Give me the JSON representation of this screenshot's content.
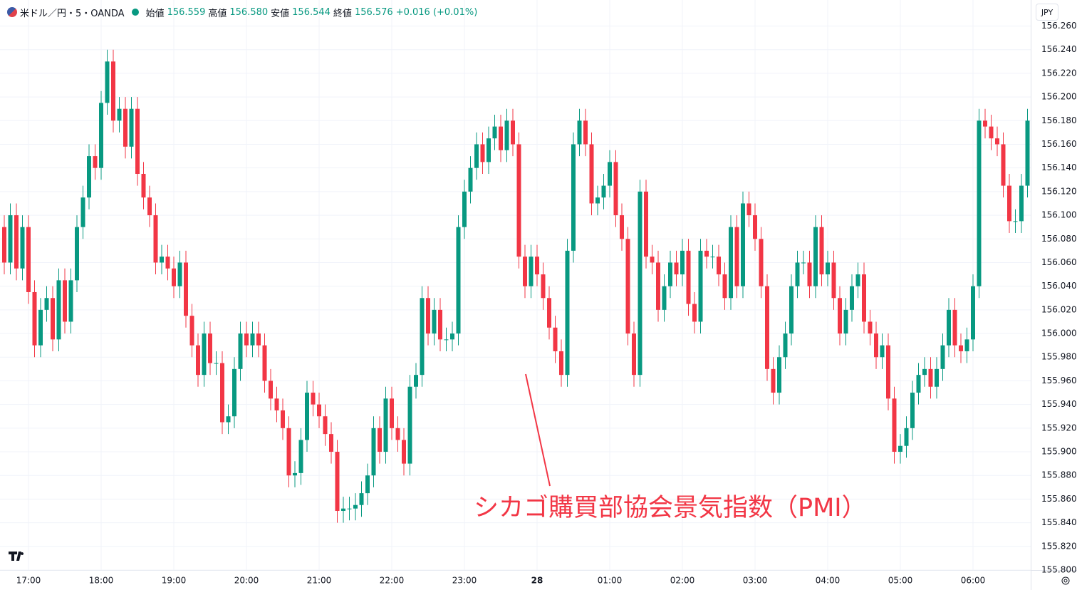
{
  "header": {
    "symbol": "米ドル／円・5・OANDA",
    "items": [
      {
        "label": "始値",
        "value": "156.559"
      },
      {
        "label": "高値",
        "value": "156.580"
      },
      {
        "label": "安値",
        "value": "156.544"
      },
      {
        "label": "終値",
        "value": "156.576"
      }
    ],
    "change": "+0.016 (+0.01%)"
  },
  "currency_button": "JPY",
  "chart_data": {
    "type": "candlestick",
    "up_color": "#089981",
    "down_color": "#f23645",
    "annotation": "シカゴ購買部協会景気指数（PMI）",
    "ylim": [
      155.8,
      156.282
    ],
    "yticks": [
      {
        "value": 155.8,
        "label": "155.800"
      },
      {
        "value": 155.82,
        "label": "155.820"
      },
      {
        "value": 155.84,
        "label": "155.840"
      },
      {
        "value": 155.86,
        "label": "155.860"
      },
      {
        "value": 155.88,
        "label": "155.880"
      },
      {
        "value": 155.9,
        "label": "155.900"
      },
      {
        "value": 155.92,
        "label": "155.920"
      },
      {
        "value": 155.94,
        "label": "155.940"
      },
      {
        "value": 155.96,
        "label": "155.960"
      },
      {
        "value": 155.98,
        "label": "155.980"
      },
      {
        "value": 156.0,
        "label": "156.000"
      },
      {
        "value": 156.02,
        "label": "156.020"
      },
      {
        "value": 156.04,
        "label": "156.040"
      },
      {
        "value": 156.06,
        "label": "156.060"
      },
      {
        "value": 156.08,
        "label": "156.080"
      },
      {
        "value": 156.1,
        "label": "156.100"
      },
      {
        "value": 156.12,
        "label": "156.120"
      },
      {
        "value": 156.14,
        "label": "156.140"
      },
      {
        "value": 156.16,
        "label": "156.160"
      },
      {
        "value": 156.18,
        "label": "156.180"
      },
      {
        "value": 156.2,
        "label": "156.200"
      },
      {
        "value": 156.22,
        "label": "156.220"
      },
      {
        "value": 156.24,
        "label": "156.240"
      },
      {
        "value": 156.26,
        "label": "156.260"
      }
    ],
    "xticks": [
      {
        "value": 4,
        "label": "17:00"
      },
      {
        "value": 16,
        "label": "18:00"
      },
      {
        "value": 28,
        "label": "19:00"
      },
      {
        "value": 40,
        "label": "20:00"
      },
      {
        "value": 52,
        "label": "21:00"
      },
      {
        "value": 64,
        "label": "22:00"
      },
      {
        "value": 76,
        "label": "23:00"
      },
      {
        "value": 88,
        "label": "28"
      },
      {
        "value": 100,
        "label": "01:00"
      },
      {
        "value": 112,
        "label": "02:00"
      },
      {
        "value": 124,
        "label": "03:00"
      },
      {
        "value": 136,
        "label": "04:00"
      },
      {
        "value": 148,
        "label": "05:00"
      },
      {
        "value": 160,
        "label": "06:00"
      }
    ],
    "open": [
      156.09,
      156.06,
      156.1,
      156.055,
      156.09,
      156.035,
      155.99,
      156.02,
      156.03,
      155.995,
      156.045,
      156.01,
      156.045,
      156.09,
      156.115,
      156.15,
      156.14,
      156.195,
      156.23,
      156.18,
      156.19,
      156.158,
      156.19,
      156.135,
      156.115,
      156.1,
      156.06,
      156.065,
      156.055,
      156.04,
      156.06,
      156.015,
      155.99,
      155.965,
      156.0,
      155.975,
      155.975,
      155.925,
      155.93,
      155.97,
      156.0,
      155.99,
      156.0,
      155.99,
      155.96,
      155.945,
      155.935,
      155.92,
      155.88,
      155.882,
      155.91,
      155.95,
      155.94,
      155.93,
      155.915,
      155.9,
      155.85,
      155.852,
      155.852,
      155.855,
      155.865,
      155.88,
      155.92,
      155.9,
      155.945,
      155.92,
      155.91,
      155.89,
      155.955,
      155.965,
      156.03,
      156.0,
      156.02,
      155.995,
      155.995,
      156.0,
      156.09,
      156.12,
      156.14,
      156.16,
      156.145,
      156.165,
      156.175,
      156.155,
      156.18,
      156.16,
      156.065,
      156.04,
      156.065,
      156.05,
      156.03,
      156.005,
      155.985,
      155.965,
      156.07,
      156.16,
      156.18,
      156.16,
      156.11,
      156.115,
      156.125,
      156.145,
      156.1,
      156.08,
      156.0,
      155.965,
      156.12,
      156.065,
      156.06,
      156.02,
      156.04,
      156.06,
      156.05,
      156.07,
      156.025,
      156.01,
      156.07,
      156.065,
      156.065,
      156.05,
      156.03,
      156.09,
      156.04,
      156.11,
      156.1,
      156.08,
      156.04,
      155.97,
      155.95,
      155.98,
      156.0,
      156.04,
      156.06,
      156.06,
      156.04,
      156.09,
      156.05,
      156.06,
      156.03,
      156.0,
      156.02,
      156.04,
      156.05,
      156.01,
      156.0,
      155.98,
      155.99,
      155.945,
      155.9,
      155.905,
      155.92,
      155.95,
      155.965,
      155.97,
      155.955,
      155.97,
      155.99,
      156.02,
      155.99,
      155.985,
      155.995,
      156.04,
      156.18,
      156.175,
      156.165,
      156.16,
      156.125,
      156.095,
      156.095,
      156.125
    ],
    "high": [
      156.1,
      156.11,
      156.11,
      156.1,
      156.1,
      156.045,
      156.03,
      156.04,
      156.04,
      156.055,
      156.055,
      156.055,
      156.1,
      156.125,
      156.16,
      156.16,
      156.205,
      156.24,
      156.24,
      156.2,
      156.2,
      156.2,
      156.2,
      156.145,
      156.125,
      156.11,
      156.075,
      156.075,
      156.065,
      156.07,
      156.07,
      156.025,
      156.0,
      156.01,
      156.01,
      155.985,
      155.985,
      155.94,
      155.98,
      156.01,
      156.01,
      156.01,
      156.01,
      156.0,
      155.97,
      155.955,
      155.945,
      155.93,
      155.892,
      155.92,
      155.96,
      155.96,
      155.95,
      155.94,
      155.925,
      155.91,
      155.862,
      155.862,
      155.865,
      155.875,
      155.89,
      155.93,
      155.93,
      155.955,
      155.955,
      155.93,
      155.92,
      155.965,
      155.975,
      156.04,
      156.04,
      156.03,
      156.03,
      156.005,
      156.01,
      156.1,
      156.13,
      156.15,
      156.17,
      156.17,
      156.175,
      156.185,
      156.185,
      156.19,
      156.19,
      156.17,
      156.075,
      156.075,
      156.075,
      156.06,
      156.04,
      156.015,
      155.995,
      156.08,
      156.17,
      156.19,
      156.19,
      156.17,
      156.125,
      156.135,
      156.155,
      156.155,
      156.11,
      156.09,
      156.01,
      156.13,
      156.13,
      156.075,
      156.07,
      156.05,
      156.07,
      156.07,
      156.08,
      156.08,
      156.035,
      156.08,
      156.08,
      156.075,
      156.075,
      156.06,
      156.1,
      156.1,
      156.12,
      156.12,
      156.11,
      156.09,
      156.05,
      155.98,
      155.99,
      156.01,
      156.05,
      156.07,
      156.07,
      156.07,
      156.1,
      156.1,
      156.07,
      156.07,
      156.04,
      156.03,
      156.05,
      156.06,
      156.06,
      156.02,
      156.01,
      156.0,
      156.0,
      155.955,
      155.915,
      155.93,
      155.96,
      155.975,
      155.98,
      155.98,
      155.98,
      156.0,
      156.03,
      156.03,
      156.0,
      156.005,
      156.05,
      156.19,
      156.19,
      156.185,
      156.175,
      156.17,
      156.135,
      156.105,
      156.135,
      156.19
    ],
    "low": [
      156.05,
      156.05,
      156.045,
      156.045,
      156.025,
      155.98,
      155.98,
      156.01,
      155.985,
      155.985,
      156.0,
      156.0,
      156.035,
      156.08,
      156.105,
      156.13,
      156.13,
      156.185,
      156.17,
      156.17,
      156.148,
      156.148,
      156.125,
      156.105,
      156.09,
      156.05,
      156.05,
      156.045,
      156.03,
      156.03,
      156.005,
      155.98,
      155.955,
      155.955,
      155.965,
      155.965,
      155.915,
      155.915,
      155.92,
      155.96,
      155.98,
      155.98,
      155.98,
      155.95,
      155.935,
      155.925,
      155.91,
      155.87,
      155.87,
      155.872,
      155.9,
      155.93,
      155.92,
      155.905,
      155.89,
      155.84,
      155.84,
      155.842,
      155.842,
      155.845,
      155.855,
      155.87,
      155.89,
      155.89,
      155.91,
      155.9,
      155.88,
      155.88,
      155.945,
      155.955,
      155.99,
      155.99,
      155.985,
      155.985,
      155.985,
      155.99,
      156.08,
      156.11,
      156.13,
      156.135,
      156.135,
      156.155,
      156.145,
      156.145,
      156.15,
      156.055,
      156.03,
      156.03,
      156.04,
      156.02,
      155.995,
      155.975,
      155.955,
      155.955,
      156.06,
      156.15,
      156.15,
      156.1,
      156.1,
      156.105,
      156.115,
      156.09,
      156.07,
      155.99,
      155.955,
      155.955,
      156.055,
      156.05,
      156.01,
      156.01,
      156.03,
      156.04,
      156.04,
      156.015,
      156.0,
      156.0,
      156.055,
      156.055,
      156.04,
      156.02,
      156.02,
      156.03,
      156.03,
      156.09,
      156.07,
      156.03,
      155.96,
      155.94,
      155.94,
      155.97,
      155.99,
      156.03,
      156.05,
      156.03,
      156.03,
      156.04,
      156.04,
      156.02,
      155.99,
      155.99,
      156.01,
      156.03,
      156.0,
      155.99,
      155.97,
      155.97,
      155.935,
      155.89,
      155.89,
      155.895,
      155.91,
      155.94,
      155.955,
      155.945,
      155.945,
      155.96,
      155.98,
      155.98,
      155.975,
      155.975,
      155.985,
      156.03,
      156.165,
      156.155,
      156.15,
      156.115,
      156.085,
      156.085,
      156.085,
      156.115
    ],
    "close": [
      156.06,
      156.1,
      156.055,
      156.09,
      156.035,
      155.99,
      156.02,
      156.03,
      155.995,
      156.045,
      156.01,
      156.045,
      156.09,
      156.115,
      156.15,
      156.14,
      156.195,
      156.23,
      156.18,
      156.19,
      156.158,
      156.19,
      156.135,
      156.115,
      156.1,
      156.06,
      156.065,
      156.055,
      156.04,
      156.06,
      156.015,
      155.99,
      155.965,
      156.0,
      155.975,
      155.975,
      155.925,
      155.93,
      155.97,
      156.0,
      155.99,
      156.0,
      155.99,
      155.96,
      155.945,
      155.935,
      155.92,
      155.88,
      155.882,
      155.91,
      155.95,
      155.94,
      155.93,
      155.915,
      155.9,
      155.85,
      155.852,
      155.852,
      155.855,
      155.865,
      155.88,
      155.92,
      155.9,
      155.945,
      155.92,
      155.91,
      155.89,
      155.955,
      155.965,
      156.03,
      156.0,
      156.02,
      155.995,
      155.995,
      156.0,
      156.09,
      156.12,
      156.14,
      156.16,
      156.145,
      156.165,
      156.175,
      156.155,
      156.18,
      156.16,
      156.065,
      156.04,
      156.065,
      156.05,
      156.03,
      156.005,
      155.985,
      155.965,
      156.07,
      156.16,
      156.18,
      156.16,
      156.11,
      156.115,
      156.125,
      156.145,
      156.1,
      156.08,
      156.0,
      155.965,
      156.12,
      156.065,
      156.06,
      156.02,
      156.04,
      156.06,
      156.05,
      156.07,
      156.025,
      156.01,
      156.07,
      156.065,
      156.065,
      156.05,
      156.03,
      156.09,
      156.04,
      156.11,
      156.1,
      156.08,
      156.04,
      155.97,
      155.95,
      155.98,
      156.0,
      156.04,
      156.06,
      156.06,
      156.04,
      156.09,
      156.05,
      156.06,
      156.03,
      156.0,
      156.02,
      156.04,
      156.05,
      156.01,
      156.0,
      155.98,
      155.99,
      155.945,
      155.9,
      155.905,
      155.92,
      155.95,
      155.965,
      155.97,
      155.955,
      155.97,
      155.99,
      156.02,
      155.99,
      155.985,
      155.995,
      156.04,
      156.18,
      156.175,
      156.165,
      156.16,
      156.125,
      156.095,
      156.095,
      156.125,
      156.18
    ]
  }
}
